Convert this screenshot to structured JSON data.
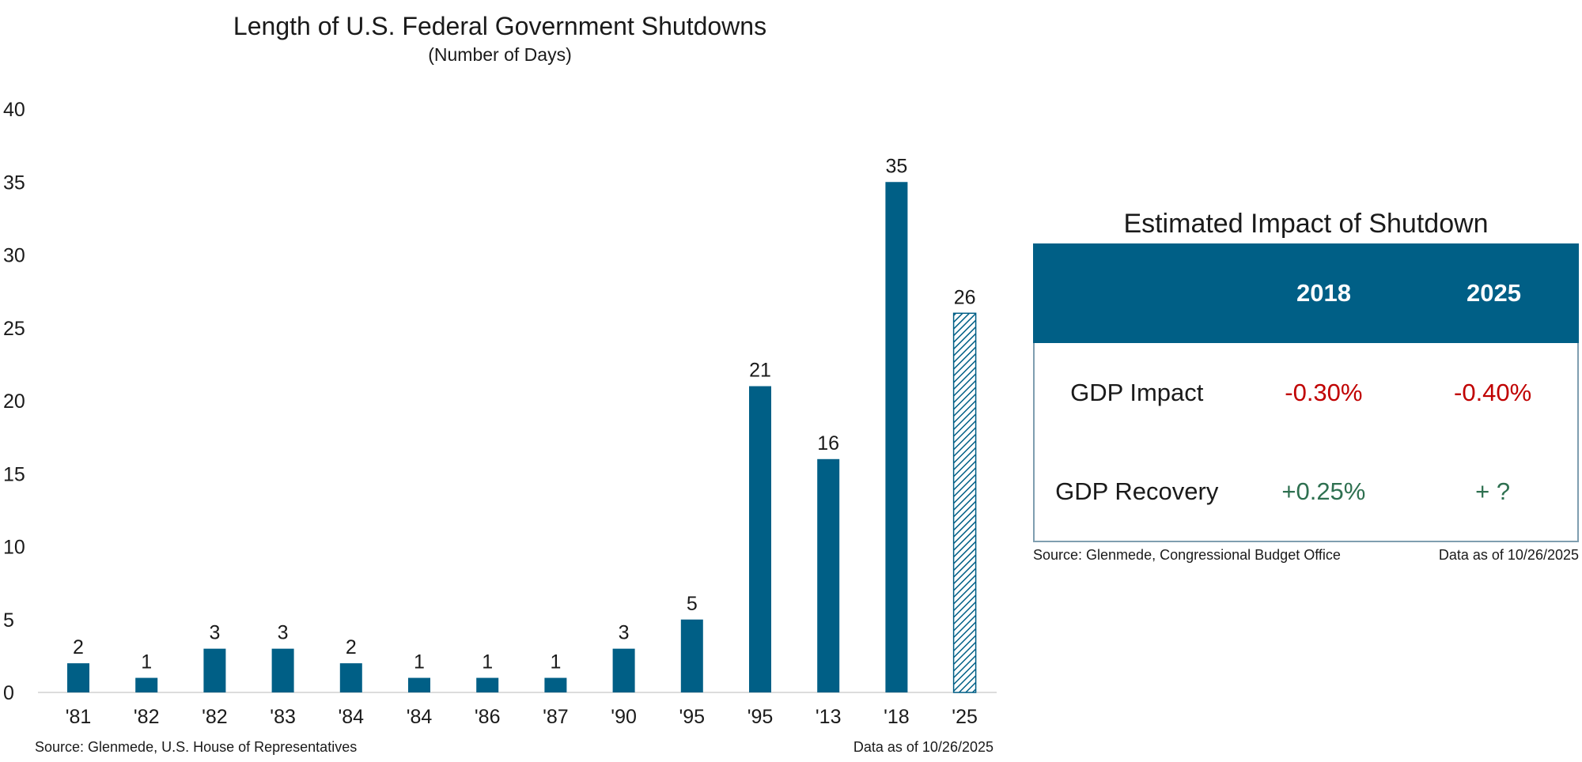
{
  "chart_data": {
    "type": "bar",
    "title": "Length of U.S. Federal Government Shutdowns",
    "subtitle": "(Number of Days)",
    "categories": [
      "'81",
      "'82",
      "'82",
      "'83",
      "'84",
      "'84",
      "'86",
      "'87",
      "'90",
      "'95",
      "'95",
      "'13",
      "'18",
      "'25"
    ],
    "values": [
      2,
      1,
      3,
      3,
      2,
      1,
      1,
      1,
      3,
      5,
      21,
      16,
      35,
      26
    ],
    "ongoing_index": 13,
    "ylim": [
      0,
      40
    ],
    "yticks": [
      0,
      5,
      10,
      15,
      20,
      25,
      30,
      35,
      40
    ],
    "grid": false,
    "xlabel": "",
    "ylabel": "",
    "colors": {
      "bar": "#005f86",
      "hatch_bg": "#ffffff",
      "axis": "#d0d0d0"
    },
    "source": "Source: Glenmede, U.S. House of Representatives",
    "date_note": "Data as of 10/26/2025"
  },
  "impact_table": {
    "title": "Estimated Impact of Shutdown",
    "columns": [
      "2018",
      "2025"
    ],
    "rows": [
      {
        "label": "GDP Impact",
        "values": [
          "-0.30%",
          "-0.40%"
        ]
      },
      {
        "label": "GDP Recovery",
        "values": [
          "+0.25%",
          "+ ?"
        ]
      }
    ],
    "colors": {
      "header": "#005f86",
      "negative": "#c00000",
      "positive": "#2e7050"
    },
    "source": "Source: Glenmede, Congressional Budget Office",
    "date_note": "Data as of 10/26/2025"
  }
}
